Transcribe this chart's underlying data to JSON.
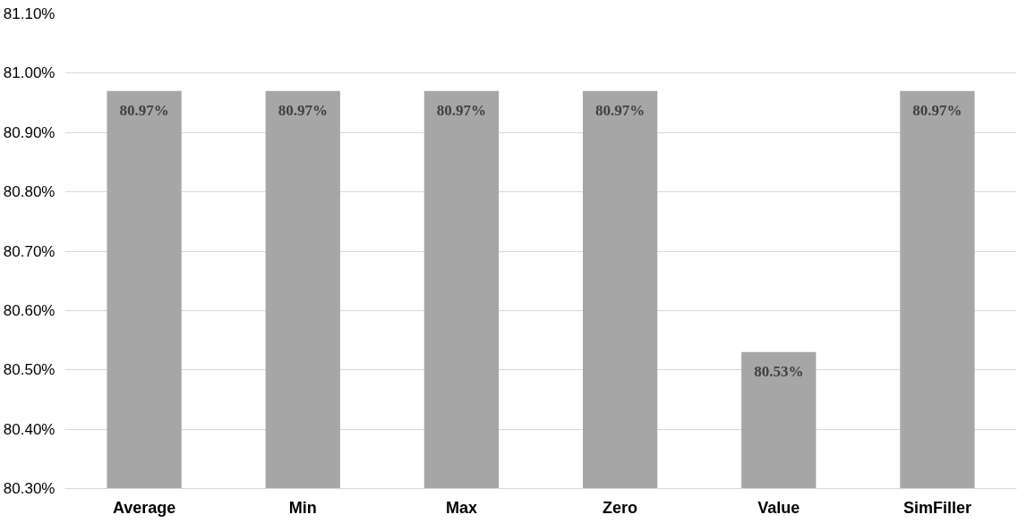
{
  "chart_data": {
    "type": "bar",
    "categories": [
      "Average",
      "Min",
      "Max",
      "Zero",
      "Value",
      "SimFiller"
    ],
    "values": [
      80.97,
      80.97,
      80.97,
      80.97,
      80.53,
      80.97
    ],
    "value_labels": [
      "80.97%",
      "80.97%",
      "80.97%",
      "80.97%",
      "80.53%",
      "80.97%"
    ],
    "color": "#a6a6a6",
    "ylim": [
      80.3,
      81.1
    ],
    "yticks": [
      {
        "value": 80.3,
        "label": "80.30%"
      },
      {
        "value": 80.4,
        "label": "80.40%"
      },
      {
        "value": 80.5,
        "label": "80.50%"
      },
      {
        "value": 80.6,
        "label": "80.60%"
      },
      {
        "value": 80.7,
        "label": "80.70%"
      },
      {
        "value": 80.8,
        "label": "80.80%"
      },
      {
        "value": 80.9,
        "label": "80.90%"
      },
      {
        "value": 81.0,
        "label": "81.00%"
      },
      {
        "value": 81.1,
        "label": "81.10%"
      }
    ],
    "grid": "y"
  }
}
